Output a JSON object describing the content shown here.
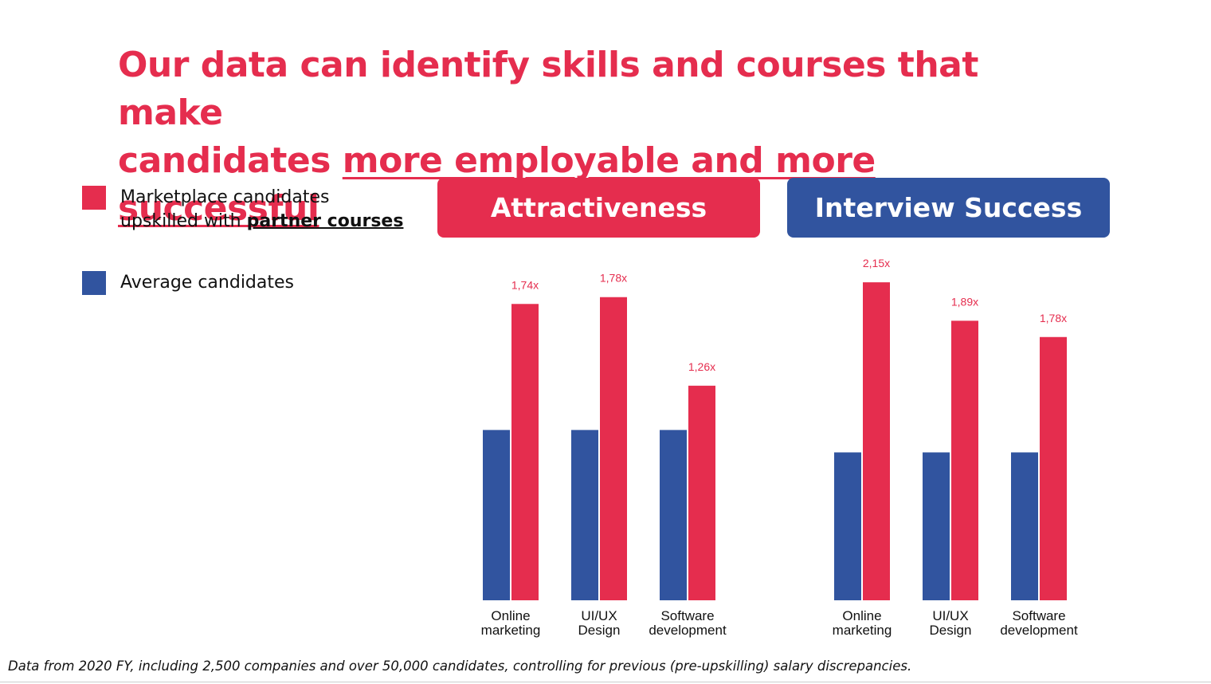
{
  "title": {
    "line1": "Our data can identify skills and courses that make",
    "line2_plain": "candidates ",
    "line2_emphasis": "more employable and more successful"
  },
  "legend": {
    "marketplace_line1": "Marketplace candidates",
    "marketplace_line2_prefix": "upskilled with ",
    "marketplace_line2_bold": "partner courses",
    "average": "Average candidates"
  },
  "colors": {
    "red": "#e52d4e",
    "blue": "#31549f"
  },
  "chart_data": [
    {
      "type": "bar",
      "title": "Attractiveness",
      "categories": [
        "Online marketing",
        "UI/UX Design",
        "Software development"
      ],
      "category_lines": [
        [
          "Online",
          "marketing"
        ],
        [
          "UI/UX",
          "Design"
        ],
        [
          "Software",
          "development"
        ]
      ],
      "series": [
        {
          "name": "Average candidates",
          "color": "#31549f",
          "values": [
            1.0,
            1.0,
            1.0
          ]
        },
        {
          "name": "Marketplace candidates upskilled with partner courses",
          "color": "#e52d4e",
          "values": [
            1.74,
            1.78,
            1.26
          ]
        }
      ],
      "data_labels": [
        "1,74x",
        "1,78x",
        "1,26x"
      ],
      "ylim": [
        0,
        1.98
      ]
    },
    {
      "type": "bar",
      "title": "Interview Success",
      "categories": [
        "Online marketing",
        "UI/UX Design",
        "Software development"
      ],
      "category_lines": [
        [
          "Online",
          "marketing"
        ],
        [
          "UI/UX",
          "Design"
        ],
        [
          "Software",
          "development"
        ]
      ],
      "series": [
        {
          "name": "Average candidates",
          "color": "#31549f",
          "values": [
            1.0,
            1.0,
            1.0
          ]
        },
        {
          "name": "Marketplace candidates upskilled with partner courses",
          "color": "#e52d4e",
          "values": [
            2.15,
            1.89,
            1.78
          ]
        }
      ],
      "data_labels": [
        "2,15x",
        "1,89x",
        "1,78x"
      ],
      "ylim": [
        0,
        2.28
      ]
    }
  ],
  "footnote": "Data from 2020 FY, including 2,500 companies and over 50,000 candidates, controlling for previous (pre-upskilling) salary discrepancies."
}
